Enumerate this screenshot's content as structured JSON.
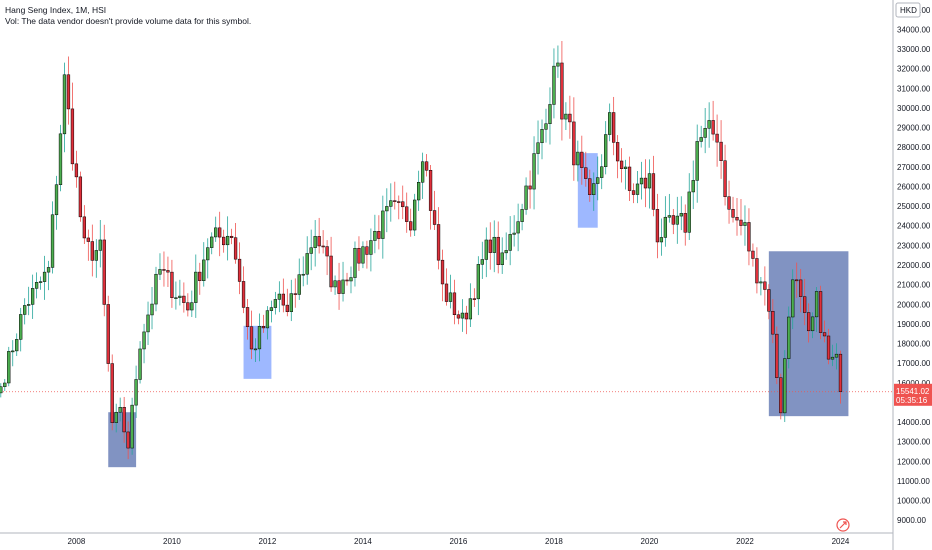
{
  "legend": {
    "title": "Hang Seng Index, 1M, HSI",
    "volume_note": "Vol: The data vendor doesn't provide volume data for this symbol."
  },
  "currency": "HKD",
  "price_tag": {
    "value": "15541.02",
    "countdown": "05:35:16"
  },
  "colors": {
    "up": "#26a69a",
    "up_body": "#4caf50",
    "down": "#ef5350",
    "down_body": "#e0303b",
    "shade_blue": "#2962ff",
    "shade_navy": "#1a3a8f",
    "price_line": "#ef5350",
    "axis_text": "#131722",
    "grid": "#f0f3fa"
  },
  "chart_data": {
    "type": "candlestick",
    "title": "Hang Seng Index, 1M, HSI",
    "xlabel": "",
    "ylabel": "",
    "grid": false,
    "y_scale": "linear",
    "ylim": [
      8500,
      35500
    ],
    "xlim": [
      2006.4,
      2025.1
    ],
    "y_ticks": [
      "9000.00",
      "10000.00",
      "11000.00",
      "12000.00",
      "13000.00",
      "14000.00",
      "15000.00",
      "16000.00",
      "17000.00",
      "18000.00",
      "19000.00",
      "20000.00",
      "21000.00",
      "22000.00",
      "23000.00",
      "24000.00",
      "25000.00",
      "26000.00",
      "27000.00",
      "28000.00",
      "29000.00",
      "30000.00",
      "31000.00",
      "32000.00",
      "33000.00",
      "34000.00",
      "35000.00"
    ],
    "x_ticks": [
      "2008",
      "2010",
      "2012",
      "2014",
      "2016",
      "2018",
      "2020",
      "2022",
      "2024"
    ],
    "last_price": 15541.02,
    "anchors": [
      {
        "date": "2006-06",
        "close": 15800
      },
      {
        "date": "2006-12",
        "close": 19900
      },
      {
        "date": "2007-06",
        "close": 21700
      },
      {
        "date": "2007-10",
        "close": 31300
      },
      {
        "date": "2008-03",
        "close": 22800
      },
      {
        "date": "2008-07",
        "close": 22700
      },
      {
        "date": "2008-10",
        "close": 13900
      },
      {
        "date": "2008-12",
        "close": 14400
      },
      {
        "date": "2009-02",
        "close": 12800
      },
      {
        "date": "2009-05",
        "close": 18100
      },
      {
        "date": "2009-10",
        "close": 21700
      },
      {
        "date": "2010-05",
        "close": 19800
      },
      {
        "date": "2010-10",
        "close": 23100
      },
      {
        "date": "2011-04",
        "close": 23700
      },
      {
        "date": "2011-09",
        "close": 17600
      },
      {
        "date": "2012-04",
        "close": 20500
      },
      {
        "date": "2012-06",
        "close": 19400
      },
      {
        "date": "2013-01",
        "close": 23700
      },
      {
        "date": "2013-06",
        "close": 20800
      },
      {
        "date": "2014-08",
        "close": 24700
      },
      {
        "date": "2015-01",
        "close": 24500
      },
      {
        "date": "2015-04",
        "close": 28100
      },
      {
        "date": "2015-09",
        "close": 20800
      },
      {
        "date": "2016-02",
        "close": 19100
      },
      {
        "date": "2016-09",
        "close": 23300
      },
      {
        "date": "2016-12",
        "close": 22000
      },
      {
        "date": "2017-11",
        "close": 29200
      },
      {
        "date": "2018-01",
        "close": 32900
      },
      {
        "date": "2018-03",
        "close": 30100
      },
      {
        "date": "2018-10",
        "close": 24900
      },
      {
        "date": "2019-03",
        "close": 29100
      },
      {
        "date": "2019-08",
        "close": 25700
      },
      {
        "date": "2020-01",
        "close": 26300
      },
      {
        "date": "2020-03",
        "close": 23600
      },
      {
        "date": "2020-10",
        "close": 24100
      },
      {
        "date": "2021-01",
        "close": 28300
      },
      {
        "date": "2021-06",
        "close": 28800
      },
      {
        "date": "2021-09",
        "close": 24600
      },
      {
        "date": "2022-01",
        "close": 23800
      },
      {
        "date": "2022-03",
        "close": 22000
      },
      {
        "date": "2022-05",
        "close": 21400
      },
      {
        "date": "2022-07",
        "close": 20000
      },
      {
        "date": "2022-10",
        "close": 14700
      },
      {
        "date": "2023-01",
        "close": 21800
      },
      {
        "date": "2023-05",
        "close": 18200
      },
      {
        "date": "2023-07",
        "close": 20100
      },
      {
        "date": "2023-10",
        "close": 17100
      },
      {
        "date": "2023-12",
        "close": 17050
      },
      {
        "date": "2024-01",
        "close": 15541
      }
    ],
    "shaded_ranges": [
      {
        "from": "2008-09",
        "to": "2009-03",
        "low": 11700,
        "high": 14500,
        "color": "shade_navy"
      },
      {
        "from": "2011-07",
        "to": "2012-01",
        "low": 16200,
        "high": 18900,
        "color": "shade_blue"
      },
      {
        "from": "2018-07",
        "to": "2018-11",
        "low": 23900,
        "high": 27700,
        "color": "shade_blue"
      },
      {
        "from": "2022-07",
        "to": "2024-02",
        "low": 14300,
        "high": 22700,
        "color": "shade_navy"
      }
    ]
  }
}
